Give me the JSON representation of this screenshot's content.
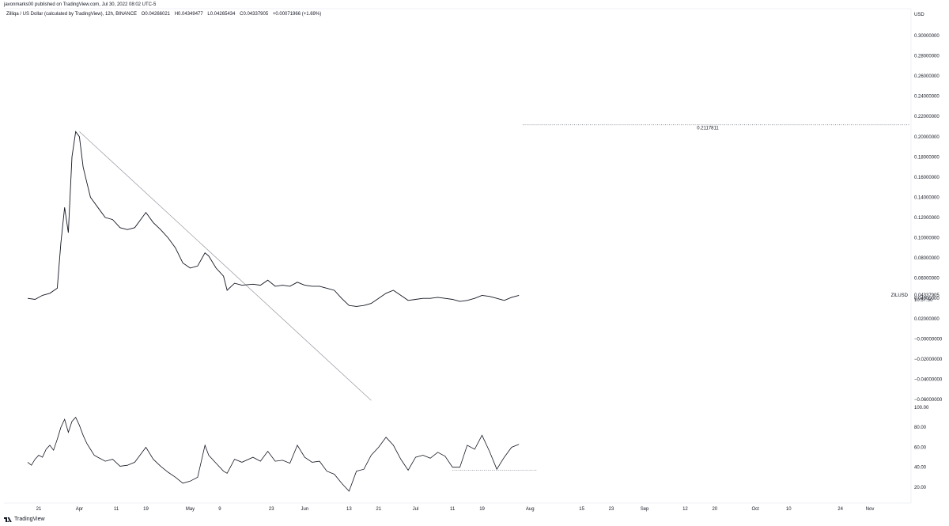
{
  "header": {
    "publisher_line": "javonmarks00 published on TradingView.com, Jul 30, 2022 08:02 UTC-5"
  },
  "legend": {
    "instrument": "Zilliqa / US Dollar (calculated by TradingView), 12h, BINANCE",
    "open_label": "O",
    "open_value": "0.04266021",
    "high_label": "H",
    "high_value": "0.04349477",
    "low_label": "L",
    "low_value": "0.04265434",
    "close_label": "C",
    "close_value": "0.04337905",
    "change": "+0.00071966 (+1.69%)"
  },
  "footer": {
    "brand": "TradingView"
  },
  "colors": {
    "line": "#131722",
    "trendline": "#9598a1",
    "dotted": "#787b86",
    "bg": "#ffffff"
  },
  "chart_data": {
    "type": "line",
    "price_pane": {
      "currency_label": "USD",
      "y_ticks": [
        "0.30000000",
        "0.28000000",
        "0.26000000",
        "0.24000000",
        "0.22000000",
        "0.20000000",
        "0.18000000",
        "0.16000000",
        "0.14000000",
        "0.12000000",
        "0.10000000",
        "0.08000000",
        "0.06000000",
        "0.04000000",
        "0.02000000",
        "−0.00000000",
        "−0.02000000",
        "−0.04000000",
        "−0.06000000"
      ],
      "y_tick_values": [
        0.3,
        0.28,
        0.26,
        0.24,
        0.22,
        0.2,
        0.18,
        0.16,
        0.14,
        0.12,
        0.1,
        0.08,
        0.06,
        0.04,
        0.02,
        0.0,
        -0.02,
        -0.04,
        -0.06
      ],
      "ylim": [
        -0.06,
        0.3
      ],
      "symbol_label": "ZILUSD",
      "last_price": "0.04337905",
      "countdown": "10:57:50",
      "last_price_value": 0.04337905,
      "level_label": "0.2117811",
      "level_value": 0.2117811,
      "series": [
        {
          "date": "2022-03-18",
          "value": 0.04
        },
        {
          "date": "2022-03-20",
          "value": 0.039
        },
        {
          "date": "2022-03-22",
          "value": 0.043
        },
        {
          "date": "2022-03-24",
          "value": 0.045
        },
        {
          "date": "2022-03-26",
          "value": 0.05
        },
        {
          "date": "2022-03-27",
          "value": 0.095
        },
        {
          "date": "2022-03-28",
          "value": 0.13
        },
        {
          "date": "2022-03-29",
          "value": 0.105
        },
        {
          "date": "2022-03-30",
          "value": 0.18
        },
        {
          "date": "2022-03-31",
          "value": 0.205
        },
        {
          "date": "2022-04-01",
          "value": 0.2
        },
        {
          "date": "2022-04-02",
          "value": 0.17
        },
        {
          "date": "2022-04-03",
          "value": 0.155
        },
        {
          "date": "2022-04-04",
          "value": 0.14
        },
        {
          "date": "2022-04-06",
          "value": 0.13
        },
        {
          "date": "2022-04-08",
          "value": 0.12
        },
        {
          "date": "2022-04-10",
          "value": 0.118
        },
        {
          "date": "2022-04-12",
          "value": 0.11
        },
        {
          "date": "2022-04-14",
          "value": 0.108
        },
        {
          "date": "2022-04-16",
          "value": 0.11
        },
        {
          "date": "2022-04-18",
          "value": 0.12
        },
        {
          "date": "2022-04-19",
          "value": 0.125
        },
        {
          "date": "2022-04-21",
          "value": 0.115
        },
        {
          "date": "2022-04-23",
          "value": 0.108
        },
        {
          "date": "2022-04-25",
          "value": 0.1
        },
        {
          "date": "2022-04-27",
          "value": 0.09
        },
        {
          "date": "2022-04-29",
          "value": 0.075
        },
        {
          "date": "2022-05-01",
          "value": 0.07
        },
        {
          "date": "2022-05-03",
          "value": 0.072
        },
        {
          "date": "2022-05-05",
          "value": 0.085
        },
        {
          "date": "2022-05-06",
          "value": 0.082
        },
        {
          "date": "2022-05-08",
          "value": 0.07
        },
        {
          "date": "2022-05-10",
          "value": 0.062
        },
        {
          "date": "2022-05-11",
          "value": 0.048
        },
        {
          "date": "2022-05-13",
          "value": 0.055
        },
        {
          "date": "2022-05-15",
          "value": 0.053
        },
        {
          "date": "2022-05-18",
          "value": 0.054
        },
        {
          "date": "2022-05-20",
          "value": 0.053
        },
        {
          "date": "2022-05-22",
          "value": 0.058
        },
        {
          "date": "2022-05-24",
          "value": 0.052
        },
        {
          "date": "2022-05-26",
          "value": 0.053
        },
        {
          "date": "2022-05-28",
          "value": 0.052
        },
        {
          "date": "2022-05-30",
          "value": 0.056
        },
        {
          "date": "2022-06-01",
          "value": 0.053
        },
        {
          "date": "2022-06-03",
          "value": 0.052
        },
        {
          "date": "2022-06-05",
          "value": 0.052
        },
        {
          "date": "2022-06-07",
          "value": 0.05
        },
        {
          "date": "2022-06-09",
          "value": 0.048
        },
        {
          "date": "2022-06-11",
          "value": 0.04
        },
        {
          "date": "2022-06-13",
          "value": 0.033
        },
        {
          "date": "2022-06-15",
          "value": 0.032
        },
        {
          "date": "2022-06-17",
          "value": 0.033
        },
        {
          "date": "2022-06-19",
          "value": 0.035
        },
        {
          "date": "2022-06-21",
          "value": 0.04
        },
        {
          "date": "2022-06-23",
          "value": 0.045
        },
        {
          "date": "2022-06-25",
          "value": 0.048
        },
        {
          "date": "2022-06-27",
          "value": 0.043
        },
        {
          "date": "2022-06-29",
          "value": 0.038
        },
        {
          "date": "2022-07-01",
          "value": 0.039
        },
        {
          "date": "2022-07-03",
          "value": 0.04
        },
        {
          "date": "2022-07-05",
          "value": 0.04
        },
        {
          "date": "2022-07-07",
          "value": 0.041
        },
        {
          "date": "2022-07-09",
          "value": 0.04
        },
        {
          "date": "2022-07-11",
          "value": 0.039
        },
        {
          "date": "2022-07-13",
          "value": 0.037
        },
        {
          "date": "2022-07-15",
          "value": 0.038
        },
        {
          "date": "2022-07-17",
          "value": 0.04
        },
        {
          "date": "2022-07-19",
          "value": 0.043
        },
        {
          "date": "2022-07-21",
          "value": 0.042
        },
        {
          "date": "2022-07-23",
          "value": 0.04
        },
        {
          "date": "2022-07-25",
          "value": 0.038
        },
        {
          "date": "2022-07-27",
          "value": 0.041
        },
        {
          "date": "2022-07-29",
          "value": 0.043
        }
      ],
      "trendline": {
        "start": {
          "date": "2022-04-01",
          "value": 0.205
        },
        "end": {
          "date": "2022-06-19",
          "value": -0.061
        }
      }
    },
    "indicator_pane": {
      "y_ticks": [
        "100.00",
        "80.00",
        "60.00",
        "40.00",
        "20.00"
      ],
      "y_tick_values": [
        100,
        80,
        60,
        40,
        20
      ],
      "ylim": [
        12,
        100
      ],
      "series": [
        {
          "date": "2022-03-18",
          "value": 45
        },
        {
          "date": "2022-03-19",
          "value": 42
        },
        {
          "date": "2022-03-20",
          "value": 48
        },
        {
          "date": "2022-03-21",
          "value": 52
        },
        {
          "date": "2022-03-22",
          "value": 50
        },
        {
          "date": "2022-03-23",
          "value": 58
        },
        {
          "date": "2022-03-24",
          "value": 62
        },
        {
          "date": "2022-03-25",
          "value": 57
        },
        {
          "date": "2022-03-26",
          "value": 68
        },
        {
          "date": "2022-03-27",
          "value": 80
        },
        {
          "date": "2022-03-28",
          "value": 88
        },
        {
          "date": "2022-03-29",
          "value": 75
        },
        {
          "date": "2022-03-30",
          "value": 86
        },
        {
          "date": "2022-03-31",
          "value": 90
        },
        {
          "date": "2022-04-01",
          "value": 82
        },
        {
          "date": "2022-04-02",
          "value": 72
        },
        {
          "date": "2022-04-03",
          "value": 64
        },
        {
          "date": "2022-04-04",
          "value": 58
        },
        {
          "date": "2022-04-05",
          "value": 52
        },
        {
          "date": "2022-04-06",
          "value": 50
        },
        {
          "date": "2022-04-08",
          "value": 46
        },
        {
          "date": "2022-04-10",
          "value": 48
        },
        {
          "date": "2022-04-12",
          "value": 41
        },
        {
          "date": "2022-04-14",
          "value": 42
        },
        {
          "date": "2022-04-16",
          "value": 45
        },
        {
          "date": "2022-04-18",
          "value": 55
        },
        {
          "date": "2022-04-19",
          "value": 60
        },
        {
          "date": "2022-04-21",
          "value": 48
        },
        {
          "date": "2022-04-23",
          "value": 41
        },
        {
          "date": "2022-04-25",
          "value": 35
        },
        {
          "date": "2022-04-27",
          "value": 30
        },
        {
          "date": "2022-04-29",
          "value": 24
        },
        {
          "date": "2022-05-01",
          "value": 26
        },
        {
          "date": "2022-05-03",
          "value": 30
        },
        {
          "date": "2022-05-05",
          "value": 62
        },
        {
          "date": "2022-05-06",
          "value": 52
        },
        {
          "date": "2022-05-08",
          "value": 44
        },
        {
          "date": "2022-05-10",
          "value": 36
        },
        {
          "date": "2022-05-11",
          "value": 34
        },
        {
          "date": "2022-05-13",
          "value": 48
        },
        {
          "date": "2022-05-15",
          "value": 45
        },
        {
          "date": "2022-05-18",
          "value": 50
        },
        {
          "date": "2022-05-20",
          "value": 46
        },
        {
          "date": "2022-05-22",
          "value": 56
        },
        {
          "date": "2022-05-24",
          "value": 46
        },
        {
          "date": "2022-05-26",
          "value": 47
        },
        {
          "date": "2022-05-28",
          "value": 44
        },
        {
          "date": "2022-05-30",
          "value": 62
        },
        {
          "date": "2022-06-01",
          "value": 50
        },
        {
          "date": "2022-06-03",
          "value": 45
        },
        {
          "date": "2022-06-05",
          "value": 46
        },
        {
          "date": "2022-06-07",
          "value": 36
        },
        {
          "date": "2022-06-09",
          "value": 33
        },
        {
          "date": "2022-06-11",
          "value": 24
        },
        {
          "date": "2022-06-13",
          "value": 16
        },
        {
          "date": "2022-06-15",
          "value": 36
        },
        {
          "date": "2022-06-17",
          "value": 38
        },
        {
          "date": "2022-06-19",
          "value": 52
        },
        {
          "date": "2022-06-21",
          "value": 60
        },
        {
          "date": "2022-06-23",
          "value": 70
        },
        {
          "date": "2022-06-25",
          "value": 62
        },
        {
          "date": "2022-06-27",
          "value": 48
        },
        {
          "date": "2022-06-29",
          "value": 37
        },
        {
          "date": "2022-07-01",
          "value": 50
        },
        {
          "date": "2022-07-03",
          "value": 52
        },
        {
          "date": "2022-07-05",
          "value": 49
        },
        {
          "date": "2022-07-07",
          "value": 55
        },
        {
          "date": "2022-07-09",
          "value": 51
        },
        {
          "date": "2022-07-11",
          "value": 40
        },
        {
          "date": "2022-07-13",
          "value": 40
        },
        {
          "date": "2022-07-15",
          "value": 62
        },
        {
          "date": "2022-07-17",
          "value": 58
        },
        {
          "date": "2022-07-19",
          "value": 72
        },
        {
          "date": "2022-07-21",
          "value": 56
        },
        {
          "date": "2022-07-23",
          "value": 38
        },
        {
          "date": "2022-07-25",
          "value": 50
        },
        {
          "date": "2022-07-27",
          "value": 60
        },
        {
          "date": "2022-07-29",
          "value": 63
        }
      ],
      "dotted_line": {
        "start_date": "2022-07-11",
        "end_date": "2022-08-01",
        "value": 37
      }
    },
    "x_ticks": [
      {
        "label": "21",
        "date": "2022-03-21"
      },
      {
        "label": "Apr",
        "date": "2022-04-01"
      },
      {
        "label": "11",
        "date": "2022-04-11"
      },
      {
        "label": "19",
        "date": "2022-04-19"
      },
      {
        "label": "May",
        "date": "2022-05-01"
      },
      {
        "label": "9",
        "date": "2022-05-09"
      },
      {
        "label": "23",
        "date": "2022-05-23"
      },
      {
        "label": "Jun",
        "date": "2022-06-01"
      },
      {
        "label": "13",
        "date": "2022-06-13"
      },
      {
        "label": "21",
        "date": "2022-06-21"
      },
      {
        "label": "Jul",
        "date": "2022-07-01"
      },
      {
        "label": "11",
        "date": "2022-07-11"
      },
      {
        "label": "19",
        "date": "2022-07-19"
      },
      {
        "label": "Aug",
        "date": "2022-08-01"
      },
      {
        "label": "15",
        "date": "2022-08-15"
      },
      {
        "label": "23",
        "date": "2022-08-23"
      },
      {
        "label": "Sep",
        "date": "2022-09-01"
      },
      {
        "label": "12",
        "date": "2022-09-12"
      },
      {
        "label": "20",
        "date": "2022-09-20"
      },
      {
        "label": "Oct",
        "date": "2022-10-01"
      },
      {
        "label": "10",
        "date": "2022-10-10"
      },
      {
        "label": "24",
        "date": "2022-10-24"
      },
      {
        "label": "Nov",
        "date": "2022-11-01"
      }
    ],
    "grid": false
  }
}
